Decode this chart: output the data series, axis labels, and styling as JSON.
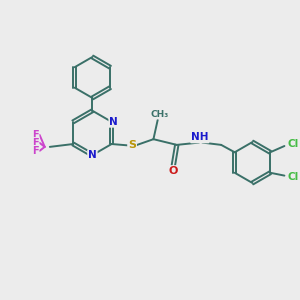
{
  "background_color": "#ececec",
  "bond_color": "#3a7068",
  "N_color": "#1a1acc",
  "O_color": "#cc1a1a",
  "S_color": "#b8960a",
  "F_color": "#cc44cc",
  "Cl_color": "#44bb44",
  "figsize": [
    3.0,
    3.0
  ],
  "dpi": 100,
  "xlim": [
    0,
    10
  ],
  "ylim": [
    0,
    10
  ]
}
